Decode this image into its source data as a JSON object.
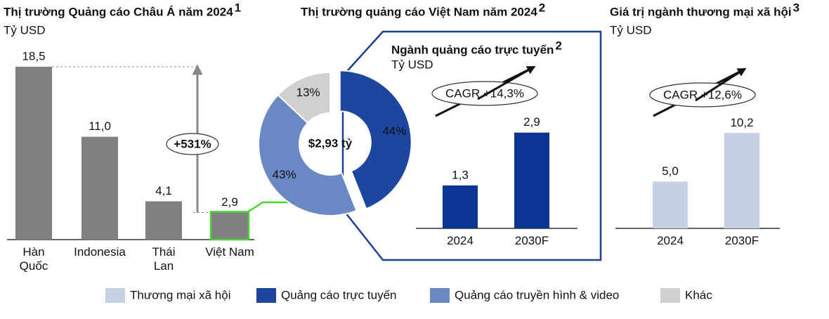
{
  "chart_data": [
    {
      "type": "bar",
      "title": "Thị trường Quảng cáo Châu Á năm 2024",
      "title_note": "1",
      "unit": "Tỷ USD",
      "categories": [
        "Hàn Quốc",
        "Indonesia",
        "Thái Lan",
        "Việt Nam"
      ],
      "values": [
        18.5,
        11.0,
        4.1,
        2.9
      ],
      "value_labels": [
        "18,5",
        "11,0",
        "4,1",
        "2,9"
      ],
      "color": "#808080",
      "annotation": "+531%"
    },
    {
      "type": "pie",
      "title": "Thị trường quảng cáo Việt Nam năm 2024",
      "title_note": "2",
      "center_label": "$2,93 tỷ",
      "values": [
        44,
        43,
        13
      ],
      "value_labels": [
        "44%",
        "43%",
        "13%"
      ],
      "colors": [
        "#1c46a0",
        "#6a88c4",
        "#d0d0d0"
      ]
    },
    {
      "type": "bar",
      "title": "Ngành quảng cáo trực tuyến",
      "title_note": "2",
      "unit": "Tỷ USD",
      "categories": [
        "2024",
        "2030F"
      ],
      "values": [
        1.3,
        2.9
      ],
      "value_labels": [
        "1,3",
        "2,9"
      ],
      "color": "#0a3593",
      "annotation": "CAGR +14,3%"
    },
    {
      "type": "bar",
      "title": "Giá trị ngành thương mại xã hội",
      "title_note": "3",
      "unit": "Tỷ USD",
      "categories": [
        "2024",
        "2030F"
      ],
      "values": [
        5.0,
        10.2
      ],
      "value_labels": [
        "5,0",
        "10,2"
      ],
      "color": "#c5d0e3",
      "annotation": "CAGR +12,6%"
    }
  ],
  "legend": [
    {
      "name": "Thương mại xã hội",
      "color": "#c5d0e3"
    },
    {
      "name": "Quảng cáo trực tuyến",
      "color": "#1c46a0"
    },
    {
      "name": "Quảng cáo truyền hình & video",
      "color": "#6a88c4"
    },
    {
      "name": "Khác",
      "color": "#d0d0d0"
    }
  ]
}
